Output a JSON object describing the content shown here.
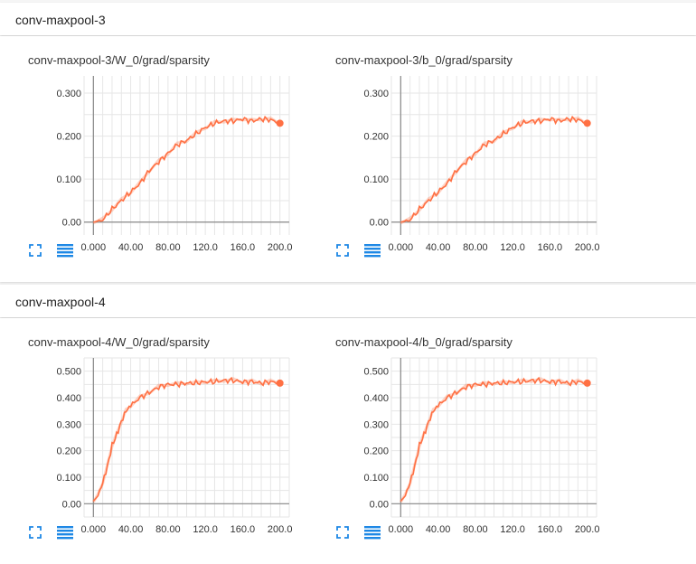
{
  "accent_color": "#1e88e5",
  "series_color": "#ff7043",
  "groups": [
    {
      "title": "conv-maxpool-3",
      "cards": [
        {
          "title": "conv-maxpool-3/W_0/grad/sparsity",
          "fullscreen_icon": "fullscreen-icon",
          "data_icon": "data-table-icon"
        },
        {
          "title": "conv-maxpool-3/b_0/grad/sparsity",
          "fullscreen_icon": "fullscreen-icon",
          "data_icon": "data-table-icon"
        }
      ]
    },
    {
      "title": "conv-maxpool-4",
      "cards": [
        {
          "title": "conv-maxpool-4/W_0/grad/sparsity",
          "fullscreen_icon": "fullscreen-icon",
          "data_icon": "data-table-icon"
        },
        {
          "title": "conv-maxpool-4/b_0/grad/sparsity",
          "fullscreen_icon": "fullscreen-icon",
          "data_icon": "data-table-icon"
        }
      ]
    }
  ],
  "chart_data": [
    {
      "type": "line",
      "title": "conv-maxpool-3/W_0/grad/sparsity",
      "xlim": [
        -10,
        210
      ],
      "ylim": [
        -0.03,
        0.34
      ],
      "x_ticks": [
        0,
        40,
        80,
        120,
        160,
        200
      ],
      "x_tick_labels": [
        "0.000",
        "40.00",
        "80.00",
        "120.0",
        "160.0",
        "200.0"
      ],
      "y_ticks": [
        0,
        0.1,
        0.2,
        0.3
      ],
      "y_tick_labels": [
        "0.00",
        "0.100",
        "0.200",
        "0.300"
      ],
      "grid": true,
      "series": [
        {
          "x": [
            0,
            10,
            20,
            30,
            40,
            50,
            60,
            70,
            80,
            90,
            100,
            110,
            120,
            130,
            140,
            150,
            160,
            170,
            180,
            190,
            200
          ],
          "y": [
            0,
            0.005,
            0.03,
            0.05,
            0.07,
            0.09,
            0.12,
            0.14,
            0.16,
            0.18,
            0.19,
            0.205,
            0.22,
            0.23,
            0.235,
            0.235,
            0.24,
            0.235,
            0.24,
            0.238,
            0.23
          ]
        }
      ]
    },
    {
      "type": "line",
      "title": "conv-maxpool-3/b_0/grad/sparsity",
      "xlim": [
        -10,
        210
      ],
      "ylim": [
        -0.03,
        0.34
      ],
      "x_ticks": [
        0,
        40,
        80,
        120,
        160,
        200
      ],
      "x_tick_labels": [
        "0.000",
        "40.00",
        "80.00",
        "120.0",
        "160.0",
        "200.0"
      ],
      "y_ticks": [
        0,
        0.1,
        0.2,
        0.3
      ],
      "y_tick_labels": [
        "0.00",
        "0.100",
        "0.200",
        "0.300"
      ],
      "grid": true,
      "series": [
        {
          "x": [
            0,
            10,
            20,
            30,
            40,
            50,
            60,
            70,
            80,
            90,
            100,
            110,
            120,
            130,
            140,
            150,
            160,
            170,
            180,
            190,
            200
          ],
          "y": [
            0,
            0.005,
            0.03,
            0.05,
            0.07,
            0.09,
            0.12,
            0.14,
            0.16,
            0.18,
            0.19,
            0.205,
            0.22,
            0.23,
            0.235,
            0.235,
            0.24,
            0.235,
            0.24,
            0.238,
            0.23
          ]
        }
      ]
    },
    {
      "type": "line",
      "title": "conv-maxpool-4/W_0/grad/sparsity",
      "xlim": [
        -10,
        210
      ],
      "ylim": [
        -0.05,
        0.55
      ],
      "x_ticks": [
        0,
        40,
        80,
        120,
        160,
        200
      ],
      "x_tick_labels": [
        "0.000",
        "40.00",
        "80.00",
        "120.0",
        "160.0",
        "200.0"
      ],
      "y_ticks": [
        0,
        0.1,
        0.2,
        0.3,
        0.4,
        0.5
      ],
      "y_tick_labels": [
        "0.00",
        "0.100",
        "0.200",
        "0.300",
        "0.400",
        "0.500"
      ],
      "grid": true,
      "series": [
        {
          "x": [
            0,
            5,
            10,
            15,
            20,
            25,
            30,
            35,
            40,
            50,
            60,
            70,
            80,
            90,
            100,
            110,
            120,
            130,
            140,
            150,
            160,
            170,
            180,
            190,
            200
          ],
          "y": [
            0.01,
            0.03,
            0.08,
            0.14,
            0.22,
            0.26,
            0.31,
            0.35,
            0.37,
            0.4,
            0.42,
            0.44,
            0.45,
            0.45,
            0.455,
            0.455,
            0.46,
            0.46,
            0.465,
            0.465,
            0.46,
            0.46,
            0.455,
            0.46,
            0.455
          ]
        }
      ]
    },
    {
      "type": "line",
      "title": "conv-maxpool-4/b_0/grad/sparsity",
      "xlim": [
        -10,
        210
      ],
      "ylim": [
        -0.05,
        0.55
      ],
      "x_ticks": [
        0,
        40,
        80,
        120,
        160,
        200
      ],
      "x_tick_labels": [
        "0.000",
        "40.00",
        "80.00",
        "120.0",
        "160.0",
        "200.0"
      ],
      "y_ticks": [
        0,
        0.1,
        0.2,
        0.3,
        0.4,
        0.5
      ],
      "y_tick_labels": [
        "0.00",
        "0.100",
        "0.200",
        "0.300",
        "0.400",
        "0.500"
      ],
      "grid": true,
      "series": [
        {
          "x": [
            0,
            5,
            10,
            15,
            20,
            25,
            30,
            35,
            40,
            50,
            60,
            70,
            80,
            90,
            100,
            110,
            120,
            130,
            140,
            150,
            160,
            170,
            180,
            190,
            200
          ],
          "y": [
            0.01,
            0.03,
            0.08,
            0.14,
            0.22,
            0.26,
            0.31,
            0.35,
            0.37,
            0.4,
            0.42,
            0.44,
            0.45,
            0.45,
            0.455,
            0.455,
            0.46,
            0.46,
            0.465,
            0.465,
            0.46,
            0.46,
            0.455,
            0.46,
            0.455
          ]
        }
      ]
    }
  ]
}
